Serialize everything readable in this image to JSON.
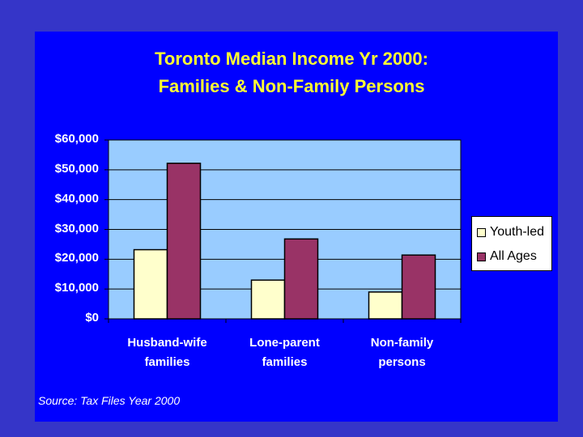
{
  "chart_data": {
    "type": "bar",
    "title_line1": "Toronto Median Income Yr 2000:",
    "title_line2": "Families & Non-Family Persons",
    "categories": [
      {
        "line1": "Husband-wife",
        "line2": "families"
      },
      {
        "line1": "Lone-parent",
        "line2": "families"
      },
      {
        "line1": "Non-family",
        "line2": "persons"
      }
    ],
    "series": [
      {
        "name": "Youth-led",
        "color": "#ffffcc",
        "values": [
          23200,
          13000,
          9000
        ]
      },
      {
        "name": "All Ages",
        "color": "#993366",
        "values": [
          52200,
          26800,
          21400
        ]
      }
    ],
    "y_ticks": [
      "$0",
      "$10,000",
      "$20,000",
      "$30,000",
      "$40,000",
      "$50,000",
      "$60,000"
    ],
    "ylim": [
      0,
      60000
    ],
    "grid": true,
    "plot_background": "#99ccff",
    "legend_position": "right",
    "xlabel": "",
    "ylabel": ""
  },
  "source_note": "Source: Tax Files Year 2000",
  "colors": {
    "slide_background": "#3535c8",
    "panel_background": "#0000ff",
    "title_color": "#ffff33"
  }
}
